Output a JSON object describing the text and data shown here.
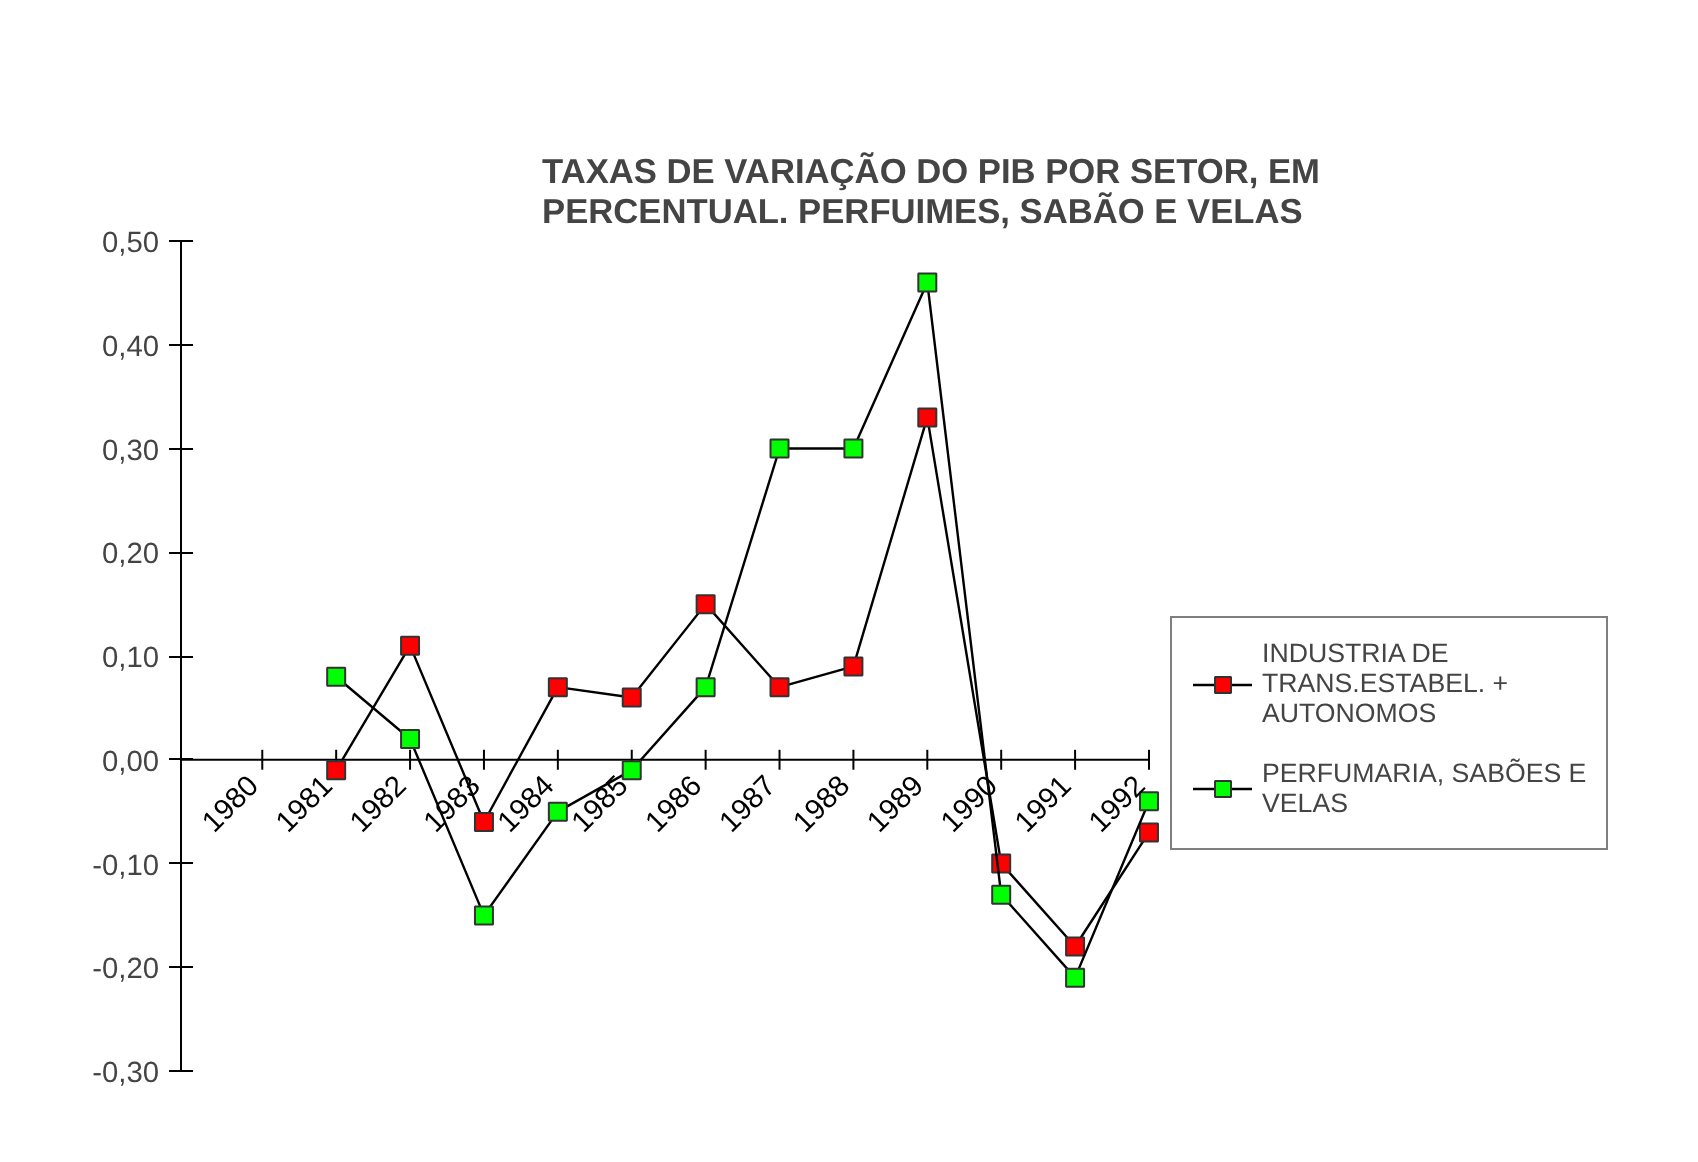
{
  "chart_data": {
    "type": "line",
    "title": "TAXAS DE VARIAÇÃO DO PIB POR SETOR, EM PERCENTUAL. PERFUIMES, SABÃO E VELAS",
    "categories": [
      "1980",
      "1981",
      "1982",
      "1983",
      "1984",
      "1985",
      "1986",
      "1987",
      "1988",
      "1989",
      "1990",
      "1991",
      "1992"
    ],
    "series": [
      {
        "name": "INDUSTRIA DE TRANS.ESTABEL. + AUTONOMOS",
        "color": "#ff0000",
        "values": [
          null,
          -0.01,
          0.11,
          -0.06,
          0.07,
          0.06,
          0.15,
          0.07,
          0.09,
          0.33,
          -0.1,
          -0.18,
          -0.07
        ]
      },
      {
        "name": "PERFUMARIA, SABÕES E VELAS",
        "color": "#00ff00",
        "values": [
          null,
          0.08,
          0.02,
          -0.15,
          -0.05,
          -0.01,
          0.07,
          0.3,
          0.3,
          0.46,
          -0.13,
          -0.21,
          -0.04
        ]
      }
    ],
    "ylim": [
      -0.3,
      0.5
    ],
    "yticks": [
      {
        "value": -0.3,
        "label": "-0,30"
      },
      {
        "value": -0.2,
        "label": "-0,20"
      },
      {
        "value": -0.1,
        "label": "-0,10"
      },
      {
        "value": 0,
        "label": "0,00"
      },
      {
        "value": 0.1,
        "label": "0,10"
      },
      {
        "value": 0.2,
        "label": "0,20"
      },
      {
        "value": 0.3,
        "label": "0,30"
      },
      {
        "value": 0.4,
        "label": "0,40"
      },
      {
        "value": 0.5,
        "label": "0,50"
      }
    ],
    "grid": false,
    "legend": "right",
    "marker": "square",
    "line_style": "solid"
  }
}
